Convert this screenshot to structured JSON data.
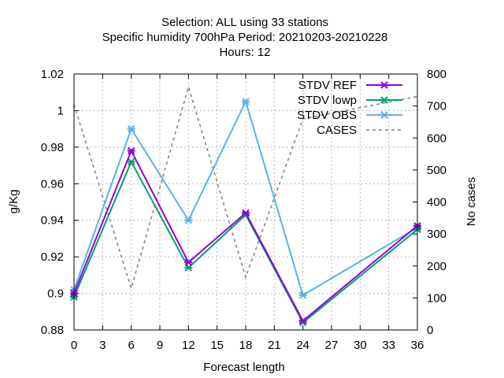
{
  "chart_data": {
    "type": "line",
    "title_lines": [
      "Selection: ALL using    33 stations",
      "Specific humidity 700hPa   Period: 20210203-20210228",
      "Hours:  12"
    ],
    "xlabel": "Forecast length",
    "ylabel": "g/Kg",
    "y2label": "No cases",
    "x": [
      0,
      6,
      12,
      18,
      24,
      36
    ],
    "xticks": [
      0,
      3,
      6,
      9,
      12,
      15,
      18,
      21,
      24,
      27,
      30,
      33,
      36
    ],
    "xticklabels": [
      "0",
      "3",
      "6",
      "9",
      "12",
      "15",
      "18",
      "21",
      "24",
      "27",
      "30",
      "33",
      "36"
    ],
    "xlim": [
      0,
      36
    ],
    "ylim": [
      0.88,
      1.02
    ],
    "yticks": [
      0.88,
      0.9,
      0.92,
      0.94,
      0.96,
      0.98,
      1.0,
      1.02
    ],
    "yticklabels": [
      "0.88",
      "0.9",
      "0.92",
      "0.94",
      "0.96",
      "0.98",
      "1",
      "1.02"
    ],
    "y2lim": [
      0,
      800
    ],
    "y2ticks": [
      0,
      100,
      200,
      300,
      400,
      500,
      600,
      700,
      800
    ],
    "y2ticklabels": [
      "0",
      "100",
      "200",
      "300",
      "400",
      "500",
      "600",
      "700",
      "800"
    ],
    "grid": true,
    "legend_position": "top-right",
    "series": [
      {
        "name": "STDV REF",
        "color": "#9400d3",
        "axis": "y",
        "style": "solid",
        "marker": "x",
        "values": [
          0.9,
          0.978,
          0.917,
          0.944,
          0.885,
          0.937
        ]
      },
      {
        "name": "STDV lowp",
        "color": "#009e73",
        "axis": "y",
        "style": "solid",
        "marker": "x",
        "values": [
          0.898,
          0.972,
          0.914,
          0.943,
          0.884,
          0.935
        ]
      },
      {
        "name": "STDV OBS",
        "color": "#56b4e9",
        "axis": "y",
        "style": "solid",
        "marker": "x",
        "values": [
          0.902,
          0.99,
          0.94,
          1.005,
          0.899,
          0.936
        ]
      },
      {
        "name": "CASES",
        "color": "#808080",
        "axis": "y2",
        "style": "dashed",
        "marker": "none",
        "values": [
          705,
          130,
          760,
          165,
          660,
          730
        ]
      }
    ]
  }
}
